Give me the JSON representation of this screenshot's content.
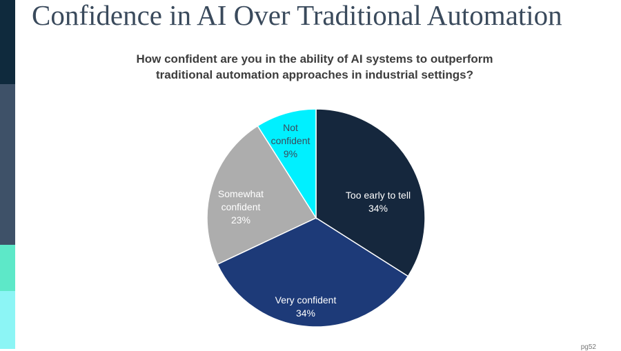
{
  "slide": {
    "title": "Confidence in AI Over Traditional Automation",
    "page_number": "pg52"
  },
  "colors": {
    "sidebar": [
      "#0f2a3d",
      "#3e5168",
      "#5de8c8",
      "#8cf5f5"
    ]
  },
  "chart_data": {
    "type": "pie",
    "title": "How confident are you in the ability of AI systems to outperform traditional automation approaches in industrial settings?",
    "title_lines": [
      "How confident are you in the ability of AI systems to outperform",
      "traditional automation approaches in industrial settings?"
    ],
    "start_angle_deg": 0,
    "direction": "clockwise",
    "slices": [
      {
        "label": "Too early to tell",
        "label_lines": [
          "Too early to tell"
        ],
        "value": 34,
        "value_label": "34%",
        "color": "#15273d",
        "text_color": "#ffffff"
      },
      {
        "label": "Very confident",
        "label_lines": [
          "Very confident"
        ],
        "value": 34,
        "value_label": "34%",
        "color": "#1d3a78",
        "text_color": "#ffffff"
      },
      {
        "label": "Somewhat confident",
        "label_lines": [
          "Somewhat",
          "confident"
        ],
        "value": 23,
        "value_label": "23%",
        "color": "#adadad",
        "text_color": "#ffffff"
      },
      {
        "label": "Not confident",
        "label_lines": [
          "Not",
          "confident"
        ],
        "value": 9,
        "value_label": "9%",
        "color": "#00f0ff",
        "text_color": "#3a4a5c"
      }
    ]
  }
}
